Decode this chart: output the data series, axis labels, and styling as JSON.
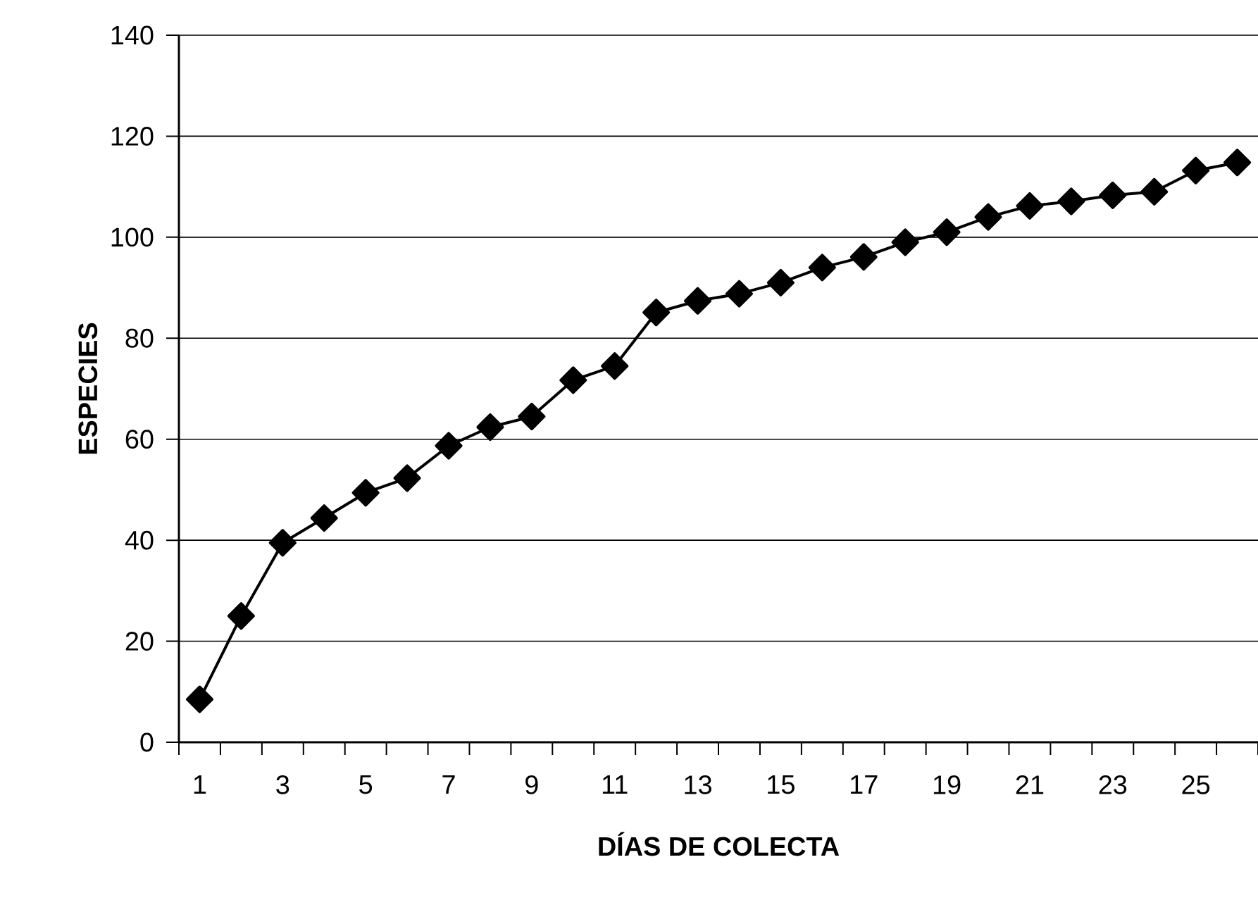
{
  "chart_data": {
    "type": "line",
    "xlabel": "DÍAS DE COLECTA",
    "ylabel": "ESPECIES",
    "categories": [
      "1",
      null,
      "3",
      null,
      "5",
      null,
      "7",
      null,
      "9",
      null,
      "11",
      null,
      "13",
      null,
      "15",
      null,
      "17",
      null,
      "19",
      null,
      "21",
      null,
      "23",
      null,
      "25",
      null
    ],
    "series": [
      {
        "color": "#000000",
        "values": [
          8.5,
          25,
          39.5,
          44.4,
          49.4,
          52.3,
          58.7,
          62.4,
          64.5,
          71.7,
          74.5,
          85.1,
          87.4,
          88.8,
          91,
          94,
          96.1,
          99,
          101,
          104,
          106.2,
          107.1,
          108.3,
          109,
          113.2,
          114.8
        ]
      }
    ],
    "ylim": [
      0,
      140
    ],
    "yticks": [
      0,
      20,
      40,
      60,
      80,
      100,
      120,
      140
    ],
    "grid": "y",
    "marker": "diamond",
    "line_style": "solid"
  }
}
